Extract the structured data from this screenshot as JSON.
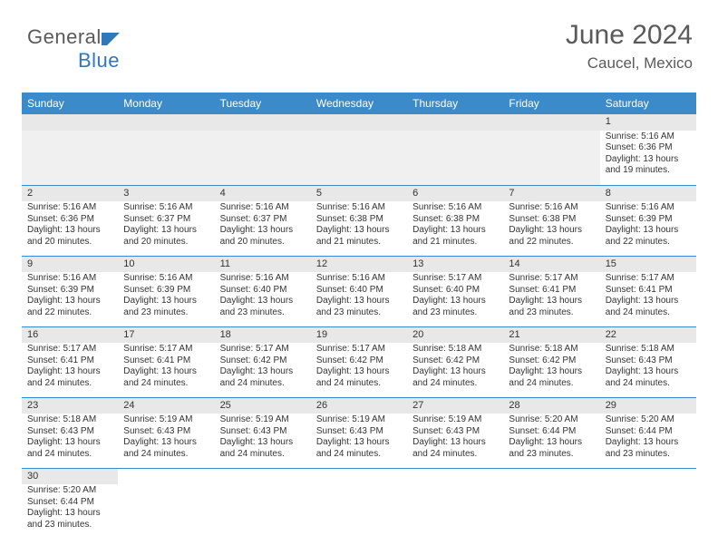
{
  "logo": {
    "text_a": "General",
    "text_b": "Blue",
    "color_gray": "#5a5a5a",
    "color_blue": "#2f78bb"
  },
  "header": {
    "month": "June 2024",
    "location": "Caucel, Mexico"
  },
  "style": {
    "header_bg": "#3b8bca",
    "header_fg": "#ffffff",
    "daynum_bg": "#e8e8e8",
    "border_color": "#3b8bca",
    "font_cell": 10,
    "font_daynum": 11,
    "font_dayhdr": 12,
    "font_month": 30,
    "font_loc": 17
  },
  "day_headers": [
    "Sunday",
    "Monday",
    "Tuesday",
    "Wednesday",
    "Thursday",
    "Friday",
    "Saturday"
  ],
  "weeks": [
    [
      null,
      null,
      null,
      null,
      null,
      null,
      {
        "n": "1",
        "sr": "Sunrise: 5:16 AM",
        "ss": "Sunset: 6:36 PM",
        "dl": "Daylight: 13 hours and 19 minutes."
      }
    ],
    [
      {
        "n": "2",
        "sr": "Sunrise: 5:16 AM",
        "ss": "Sunset: 6:36 PM",
        "dl": "Daylight: 13 hours and 20 minutes."
      },
      {
        "n": "3",
        "sr": "Sunrise: 5:16 AM",
        "ss": "Sunset: 6:37 PM",
        "dl": "Daylight: 13 hours and 20 minutes."
      },
      {
        "n": "4",
        "sr": "Sunrise: 5:16 AM",
        "ss": "Sunset: 6:37 PM",
        "dl": "Daylight: 13 hours and 20 minutes."
      },
      {
        "n": "5",
        "sr": "Sunrise: 5:16 AM",
        "ss": "Sunset: 6:38 PM",
        "dl": "Daylight: 13 hours and 21 minutes."
      },
      {
        "n": "6",
        "sr": "Sunrise: 5:16 AM",
        "ss": "Sunset: 6:38 PM",
        "dl": "Daylight: 13 hours and 21 minutes."
      },
      {
        "n": "7",
        "sr": "Sunrise: 5:16 AM",
        "ss": "Sunset: 6:38 PM",
        "dl": "Daylight: 13 hours and 22 minutes."
      },
      {
        "n": "8",
        "sr": "Sunrise: 5:16 AM",
        "ss": "Sunset: 6:39 PM",
        "dl": "Daylight: 13 hours and 22 minutes."
      }
    ],
    [
      {
        "n": "9",
        "sr": "Sunrise: 5:16 AM",
        "ss": "Sunset: 6:39 PM",
        "dl": "Daylight: 13 hours and 22 minutes."
      },
      {
        "n": "10",
        "sr": "Sunrise: 5:16 AM",
        "ss": "Sunset: 6:39 PM",
        "dl": "Daylight: 13 hours and 23 minutes."
      },
      {
        "n": "11",
        "sr": "Sunrise: 5:16 AM",
        "ss": "Sunset: 6:40 PM",
        "dl": "Daylight: 13 hours and 23 minutes."
      },
      {
        "n": "12",
        "sr": "Sunrise: 5:16 AM",
        "ss": "Sunset: 6:40 PM",
        "dl": "Daylight: 13 hours and 23 minutes."
      },
      {
        "n": "13",
        "sr": "Sunrise: 5:17 AM",
        "ss": "Sunset: 6:40 PM",
        "dl": "Daylight: 13 hours and 23 minutes."
      },
      {
        "n": "14",
        "sr": "Sunrise: 5:17 AM",
        "ss": "Sunset: 6:41 PM",
        "dl": "Daylight: 13 hours and 23 minutes."
      },
      {
        "n": "15",
        "sr": "Sunrise: 5:17 AM",
        "ss": "Sunset: 6:41 PM",
        "dl": "Daylight: 13 hours and 24 minutes."
      }
    ],
    [
      {
        "n": "16",
        "sr": "Sunrise: 5:17 AM",
        "ss": "Sunset: 6:41 PM",
        "dl": "Daylight: 13 hours and 24 minutes."
      },
      {
        "n": "17",
        "sr": "Sunrise: 5:17 AM",
        "ss": "Sunset: 6:41 PM",
        "dl": "Daylight: 13 hours and 24 minutes."
      },
      {
        "n": "18",
        "sr": "Sunrise: 5:17 AM",
        "ss": "Sunset: 6:42 PM",
        "dl": "Daylight: 13 hours and 24 minutes."
      },
      {
        "n": "19",
        "sr": "Sunrise: 5:17 AM",
        "ss": "Sunset: 6:42 PM",
        "dl": "Daylight: 13 hours and 24 minutes."
      },
      {
        "n": "20",
        "sr": "Sunrise: 5:18 AM",
        "ss": "Sunset: 6:42 PM",
        "dl": "Daylight: 13 hours and 24 minutes."
      },
      {
        "n": "21",
        "sr": "Sunrise: 5:18 AM",
        "ss": "Sunset: 6:42 PM",
        "dl": "Daylight: 13 hours and 24 minutes."
      },
      {
        "n": "22",
        "sr": "Sunrise: 5:18 AM",
        "ss": "Sunset: 6:43 PM",
        "dl": "Daylight: 13 hours and 24 minutes."
      }
    ],
    [
      {
        "n": "23",
        "sr": "Sunrise: 5:18 AM",
        "ss": "Sunset: 6:43 PM",
        "dl": "Daylight: 13 hours and 24 minutes."
      },
      {
        "n": "24",
        "sr": "Sunrise: 5:19 AM",
        "ss": "Sunset: 6:43 PM",
        "dl": "Daylight: 13 hours and 24 minutes."
      },
      {
        "n": "25",
        "sr": "Sunrise: 5:19 AM",
        "ss": "Sunset: 6:43 PM",
        "dl": "Daylight: 13 hours and 24 minutes."
      },
      {
        "n": "26",
        "sr": "Sunrise: 5:19 AM",
        "ss": "Sunset: 6:43 PM",
        "dl": "Daylight: 13 hours and 24 minutes."
      },
      {
        "n": "27",
        "sr": "Sunrise: 5:19 AM",
        "ss": "Sunset: 6:43 PM",
        "dl": "Daylight: 13 hours and 24 minutes."
      },
      {
        "n": "28",
        "sr": "Sunrise: 5:20 AM",
        "ss": "Sunset: 6:44 PM",
        "dl": "Daylight: 13 hours and 23 minutes."
      },
      {
        "n": "29",
        "sr": "Sunrise: 5:20 AM",
        "ss": "Sunset: 6:44 PM",
        "dl": "Daylight: 13 hours and 23 minutes."
      }
    ],
    [
      {
        "n": "30",
        "sr": "Sunrise: 5:20 AM",
        "ss": "Sunset: 6:44 PM",
        "dl": "Daylight: 13 hours and 23 minutes."
      },
      null,
      null,
      null,
      null,
      null,
      null
    ]
  ]
}
